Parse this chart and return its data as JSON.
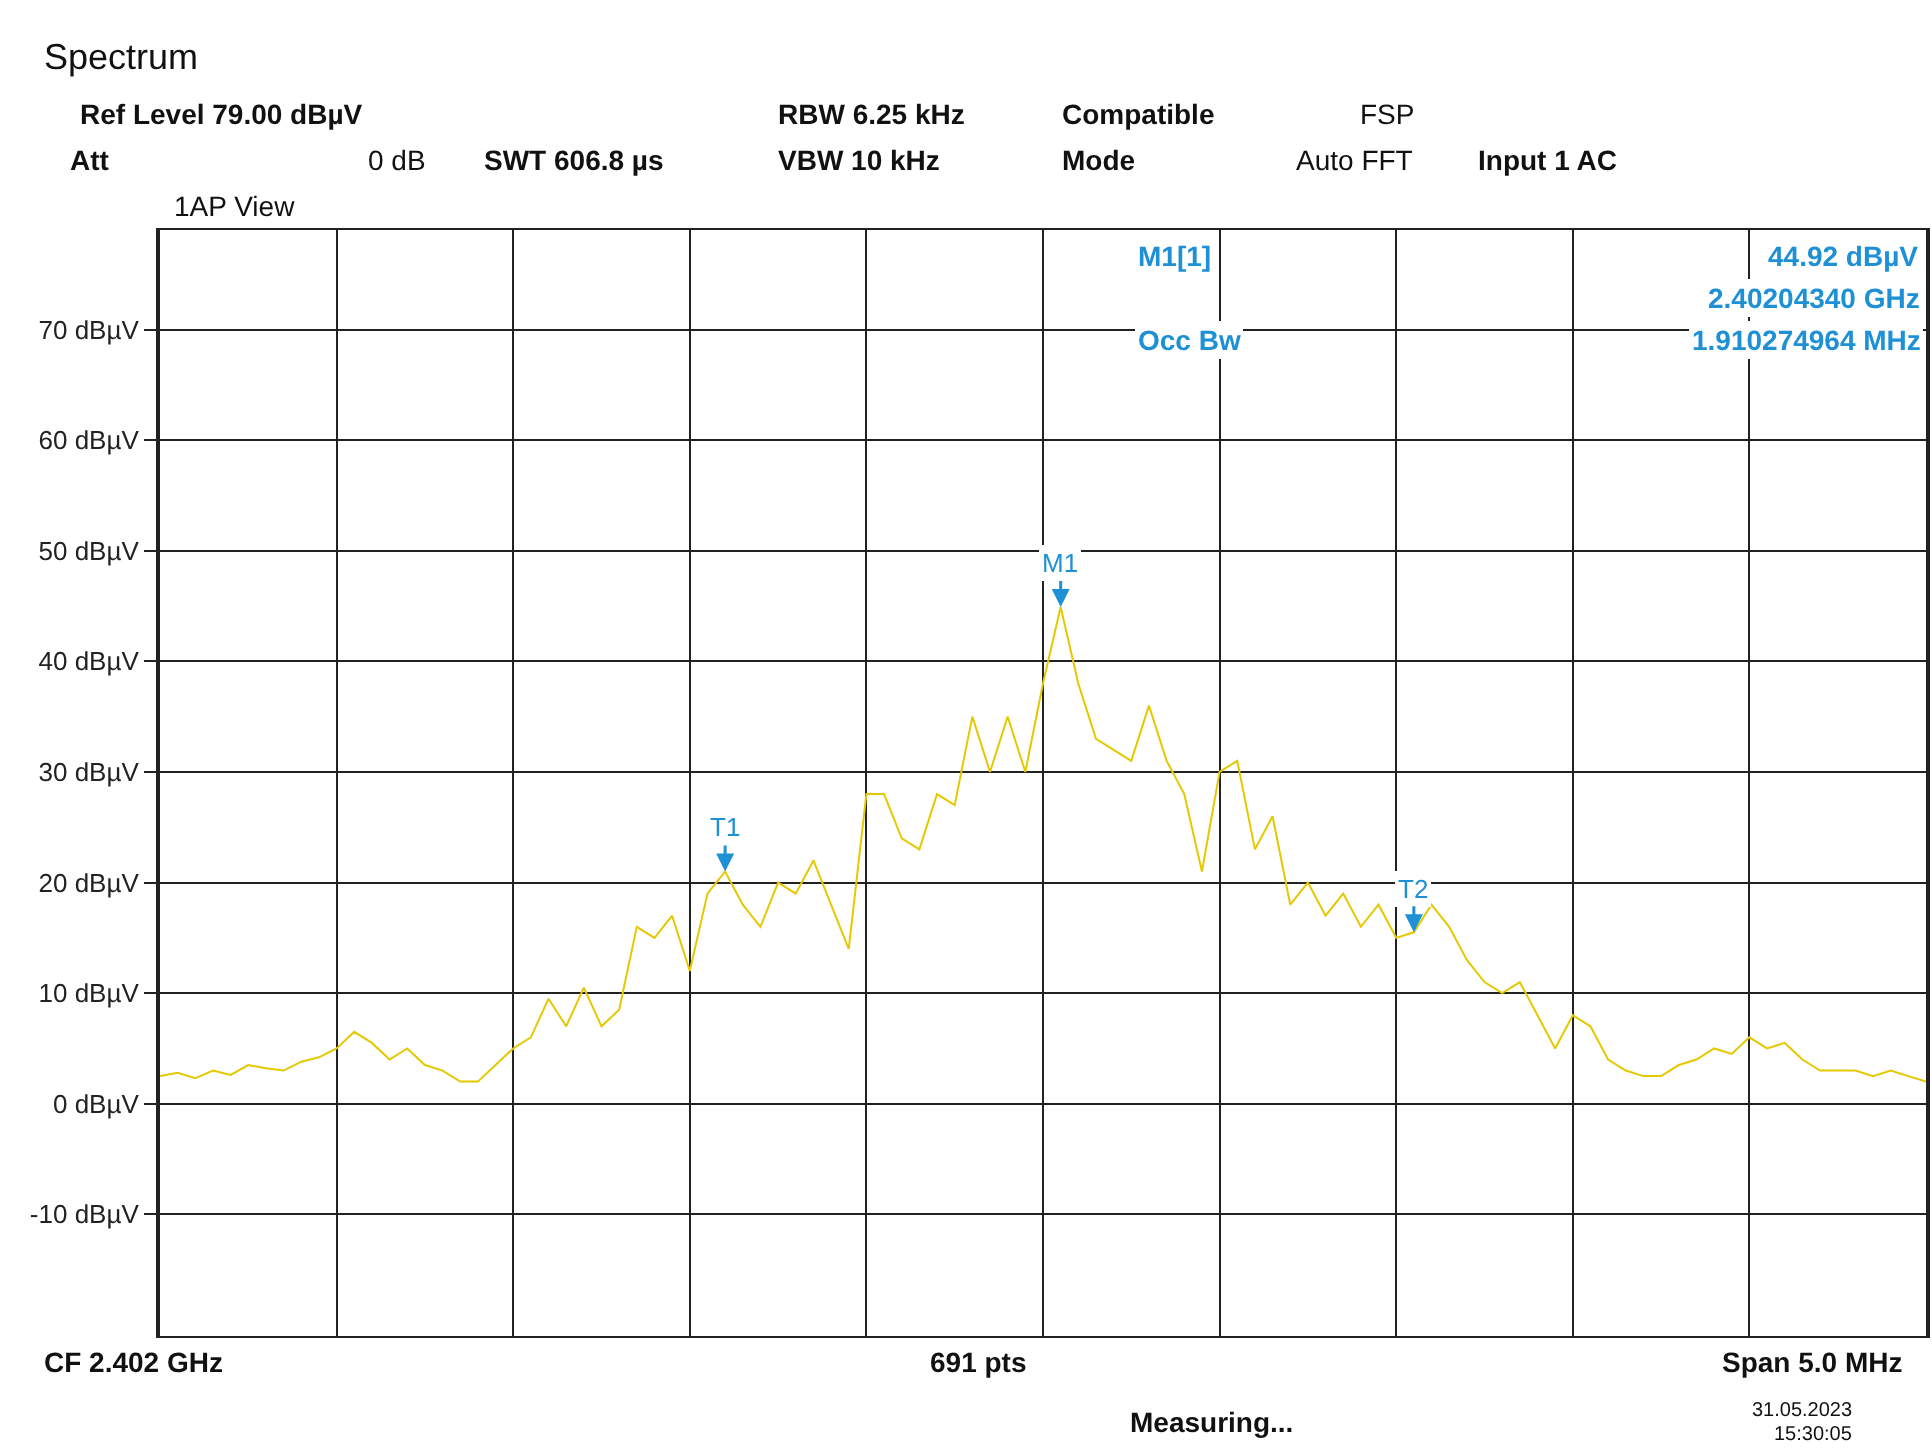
{
  "chart_data": {
    "type": "line",
    "title": "Spectrum",
    "categories": [
      null,
      null,
      null,
      null,
      null,
      null,
      null,
      null,
      null,
      null,
      null,
      null,
      null,
      null,
      null,
      null,
      null,
      null,
      null,
      null,
      null,
      null,
      null,
      null,
      null,
      null,
      null,
      null,
      null,
      null,
      null,
      null,
      null,
      null,
      null,
      null,
      null,
      null,
      null,
      null,
      null,
      null,
      null,
      null,
      null,
      null,
      null,
      null,
      null,
      null,
      null,
      null,
      null,
      null,
      null,
      null,
      null,
      null,
      null,
      null,
      null,
      null,
      null,
      null,
      null,
      null,
      null,
      null,
      null,
      null,
      null,
      null,
      null,
      null,
      null,
      null,
      null,
      null,
      null,
      null,
      null,
      null,
      null,
      null,
      null,
      null,
      null,
      null,
      null,
      null,
      null,
      null,
      null,
      null,
      null,
      null,
      null,
      null,
      null,
      null,
      null
    ],
    "series": [
      {
        "color": "#e6c800",
        "values": [
          2.5,
          2.8,
          2.3,
          3.0,
          2.6,
          3.5,
          3.2,
          3.0,
          3.8,
          4.2,
          5.0,
          6.5,
          5.5,
          4.0,
          5.0,
          3.5,
          3.0,
          2.0,
          2.0,
          3.5,
          5.0,
          6.0,
          9.5,
          7.0,
          10.5,
          7.0,
          8.5,
          16,
          15,
          17,
          12,
          19,
          21,
          18,
          16,
          20,
          19,
          22,
          18,
          14,
          28,
          28,
          24,
          23,
          28,
          27,
          35,
          30,
          35,
          30,
          38,
          44.92,
          38,
          33,
          32,
          31,
          36,
          31,
          28,
          21,
          30,
          31,
          23,
          26,
          18,
          20,
          17,
          19,
          16,
          18,
          15,
          15.5,
          18,
          16,
          13,
          11,
          10,
          11,
          8,
          5,
          8,
          7,
          4,
          3,
          2.5,
          2.5,
          3.5,
          4,
          5,
          4.5,
          6,
          5,
          5.5,
          4,
          3,
          3,
          3,
          2.5,
          3,
          2.5,
          2
        ]
      }
    ],
    "ylim": [
      -21,
      79
    ],
    "yticks": [
      {
        "value": 70,
        "label": "70 dBµV"
      },
      {
        "value": 60,
        "label": "60 dBµV"
      },
      {
        "value": 50,
        "label": "50 dBµV"
      },
      {
        "value": 40,
        "label": "40 dBµV"
      },
      {
        "value": 30,
        "label": "30 dBµV"
      },
      {
        "value": 20,
        "label": "20 dBµV"
      },
      {
        "value": 10,
        "label": "10 dBµV"
      },
      {
        "value": 0,
        "label": "0 dBµV"
      },
      {
        "value": -10,
        "label": "-10 dBµV"
      }
    ],
    "tick_labels": "y",
    "grid": true,
    "legend": false,
    "marker": "none",
    "line_style": "solid",
    "annotations": [
      {
        "text": "M1",
        "y": 44.92
      },
      {
        "text": "T1",
        "y": 21
      },
      {
        "text": "T2",
        "y": 15.5
      },
      "Ref Level 79.00 dBµV",
      "Att",
      "0 dB",
      "SWT 606.8 µs",
      "RBW 6.25 kHz",
      "VBW 10 kHz",
      "Compatible",
      "FSP",
      "Mode",
      "Auto FFT",
      "Input 1 AC",
      "1AP View",
      "M1[1]",
      "44.92 dBµV",
      "2.40204340 GHz",
      "Occ Bw",
      "1.910274964 MHz",
      "CF 2.402 GHz",
      "691 pts",
      "Span 5.0 MHz",
      "Measuring...",
      "31.05.2023",
      "15:30:05"
    ]
  }
}
